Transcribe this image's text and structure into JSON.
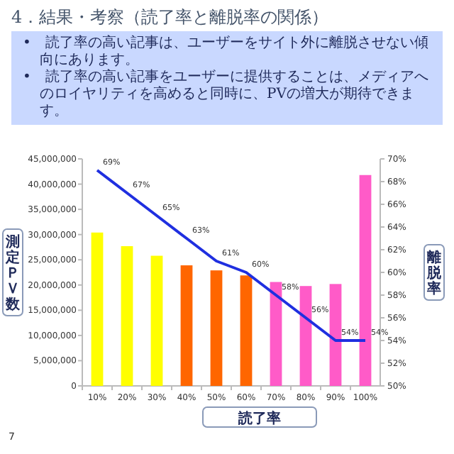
{
  "chart_data": {
    "type": "bar",
    "title": "4．結果・考察（読了率と離脱率の関係）",
    "annotations": [
      "•　読了率の高い記事は、ユーザーをサイト外に離脱させない傾向にあります。",
      "•　読了率の高い記事をユーザーに提供することは、メディアへのロイヤリティを高めると同時に、PVの増大が期待できます。",
      "7"
    ],
    "xlabel": "読了率",
    "ylabel": "測定ＰＶ数",
    "y2label": "離脱率",
    "categories": [
      "10%",
      "20%",
      "30%",
      "40%",
      "50%",
      "60%",
      "70%",
      "80%",
      "90%",
      "100%"
    ],
    "series": [
      {
        "colors": [
          "#ffff00",
          "#ffff00",
          "#ffff00",
          "#ff6600",
          "#ff6600",
          "#ff6600",
          "#ff5bc8",
          "#ff5bc8",
          "#ff5bc8",
          "#ff5bc8"
        ],
        "values": [
          30400000,
          27700000,
          25800000,
          23900000,
          22900000,
          21900000,
          20600000,
          19800000,
          20200000,
          41800000
        ]
      },
      {
        "type": "line",
        "axis": "y2",
        "color": "#1f2fe0",
        "values": [
          69,
          67,
          65,
          63,
          61,
          60,
          58,
          56,
          54,
          54
        ],
        "value_labels": [
          "69%",
          "67%",
          "65%",
          "63%",
          "61%",
          "60%",
          "58%",
          "56%",
          "54%",
          "54%"
        ]
      }
    ],
    "ylim": [
      0,
      45000000
    ],
    "yticks": [
      0,
      {
        "value": 5000000,
        "label": "5,000,000"
      },
      {
        "value": 10000000,
        "label": "10,000,000"
      },
      {
        "value": 15000000,
        "label": "15,000,000"
      },
      {
        "value": 20000000,
        "label": "20,000,000"
      },
      {
        "value": 25000000,
        "label": "25,000,000"
      },
      {
        "value": 30000000,
        "label": "30,000,000"
      },
      {
        "value": 35000000,
        "label": "35,000,000"
      },
      {
        "value": 40000000,
        "label": "40,000,000"
      },
      {
        "value": 45000000,
        "label": "45,000,000"
      }
    ],
    "y2lim": [
      50,
      70
    ],
    "y2ticks": [
      {
        "value": 50,
        "label": "50%"
      },
      {
        "value": 52,
        "label": "52%"
      },
      {
        "value": 54,
        "label": "54%"
      },
      {
        "value": 56,
        "label": "56%"
      },
      {
        "value": 58,
        "label": "58%"
      },
      {
        "value": 60,
        "label": "60%"
      },
      {
        "value": 62,
        "label": "62%"
      },
      {
        "value": 64,
        "label": "64%"
      },
      {
        "value": 66,
        "label": "66%"
      },
      {
        "value": 68,
        "label": "68%"
      },
      {
        "value": 70,
        "label": "70%"
      }
    ]
  }
}
